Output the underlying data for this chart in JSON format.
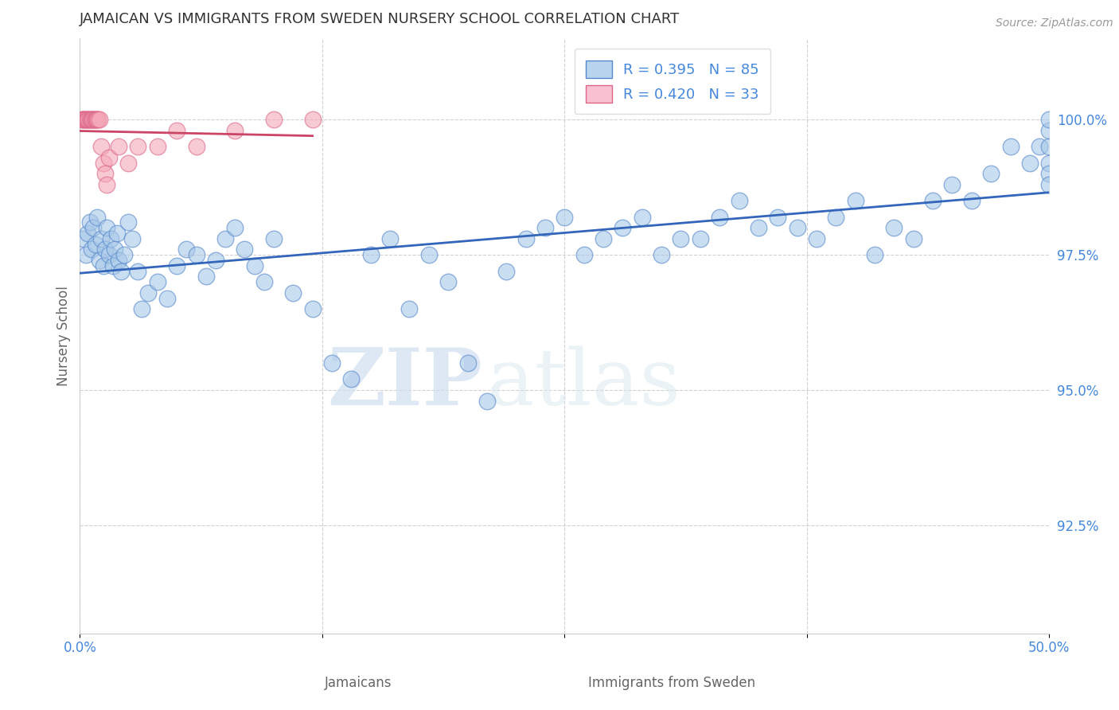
{
  "title": "JAMAICAN VS IMMIGRANTS FROM SWEDEN NURSERY SCHOOL CORRELATION CHART",
  "source": "Source: ZipAtlas.com",
  "xlabel_jamaicans": "Jamaicans",
  "xlabel_sweden": "Immigrants from Sweden",
  "ylabel": "Nursery School",
  "xlim": [
    0.0,
    50.0
  ],
  "ylim": [
    90.5,
    101.5
  ],
  "xticks": [
    0.0,
    12.5,
    25.0,
    37.5,
    50.0
  ],
  "xtick_labels": [
    "0.0%",
    "",
    "",
    "",
    "50.0%"
  ],
  "yticks": [
    92.5,
    95.0,
    97.5,
    100.0
  ],
  "ytick_labels": [
    "92.5%",
    "95.0%",
    "97.5%",
    "100.0%"
  ],
  "blue_R": 0.395,
  "blue_N": 85,
  "pink_R": 0.42,
  "pink_N": 33,
  "blue_color": "#a8c8e8",
  "pink_color": "#f4a8b8",
  "blue_edge_color": "#5588cc",
  "pink_edge_color": "#dd6688",
  "blue_line_color": "#3366bb",
  "pink_line_color": "#cc4466",
  "blue_scatter_x": [
    0.2,
    0.3,
    0.4,
    0.5,
    0.6,
    0.7,
    0.8,
    0.9,
    1.0,
    1.1,
    1.2,
    1.3,
    1.4,
    1.5,
    1.6,
    1.7,
    1.8,
    1.9,
    2.0,
    2.1,
    2.3,
    2.5,
    2.7,
    3.0,
    3.2,
    3.5,
    4.0,
    4.5,
    5.0,
    5.5,
    6.0,
    6.5,
    7.0,
    7.5,
    8.0,
    8.5,
    9.0,
    9.5,
    10.0,
    11.0,
    12.0,
    13.0,
    14.0,
    15.0,
    16.0,
    17.0,
    18.0,
    19.0,
    20.0,
    21.0,
    22.0,
    23.0,
    24.0,
    25.0,
    26.0,
    27.0,
    28.0,
    29.0,
    30.0,
    31.0,
    32.0,
    33.0,
    34.0,
    35.0,
    36.0,
    37.0,
    38.0,
    39.0,
    40.0,
    41.0,
    42.0,
    43.0,
    44.0,
    45.0,
    46.0,
    47.0,
    48.0,
    49.0,
    49.5,
    50.0,
    50.0,
    50.0,
    50.0,
    50.0,
    50.0
  ],
  "blue_scatter_y": [
    97.8,
    97.5,
    97.9,
    98.1,
    97.6,
    98.0,
    97.7,
    98.2,
    97.4,
    97.8,
    97.3,
    97.6,
    98.0,
    97.5,
    97.8,
    97.3,
    97.6,
    97.9,
    97.4,
    97.2,
    97.5,
    98.1,
    97.8,
    97.2,
    96.5,
    96.8,
    97.0,
    96.7,
    97.3,
    97.6,
    97.5,
    97.1,
    97.4,
    97.8,
    98.0,
    97.6,
    97.3,
    97.0,
    97.8,
    96.8,
    96.5,
    95.5,
    95.2,
    97.5,
    97.8,
    96.5,
    97.5,
    97.0,
    95.5,
    94.8,
    97.2,
    97.8,
    98.0,
    98.2,
    97.5,
    97.8,
    98.0,
    98.2,
    97.5,
    97.8,
    97.8,
    98.2,
    98.5,
    98.0,
    98.2,
    98.0,
    97.8,
    98.2,
    98.5,
    97.5,
    98.0,
    97.8,
    98.5,
    98.8,
    98.5,
    99.0,
    99.5,
    99.2,
    99.5,
    99.8,
    100.0,
    99.5,
    99.2,
    99.0,
    98.8
  ],
  "pink_scatter_x": [
    0.1,
    0.15,
    0.2,
    0.25,
    0.3,
    0.35,
    0.4,
    0.45,
    0.5,
    0.55,
    0.6,
    0.65,
    0.7,
    0.75,
    0.8,
    0.85,
    0.9,
    0.95,
    1.0,
    1.1,
    1.2,
    1.3,
    1.4,
    1.5,
    2.0,
    2.5,
    3.0,
    4.0,
    5.0,
    6.0,
    8.0,
    10.0,
    12.0
  ],
  "pink_scatter_y": [
    100.0,
    100.0,
    100.0,
    100.0,
    100.0,
    100.0,
    100.0,
    100.0,
    100.0,
    100.0,
    100.0,
    100.0,
    100.0,
    100.0,
    100.0,
    100.0,
    100.0,
    100.0,
    100.0,
    99.5,
    99.2,
    99.0,
    98.8,
    99.3,
    99.5,
    99.2,
    99.5,
    99.5,
    99.8,
    99.5,
    99.8,
    100.0,
    100.0
  ],
  "watermark_zip": "ZIP",
  "watermark_atlas": "atlas",
  "background_color": "#ffffff",
  "grid_color": "#cccccc",
  "title_color": "#333333",
  "axis_label_color": "#666666",
  "tick_label_color": "#4488dd",
  "legend_blue_label": "R = 0.395   N = 85",
  "legend_pink_label": "R = 0.420   N = 33"
}
